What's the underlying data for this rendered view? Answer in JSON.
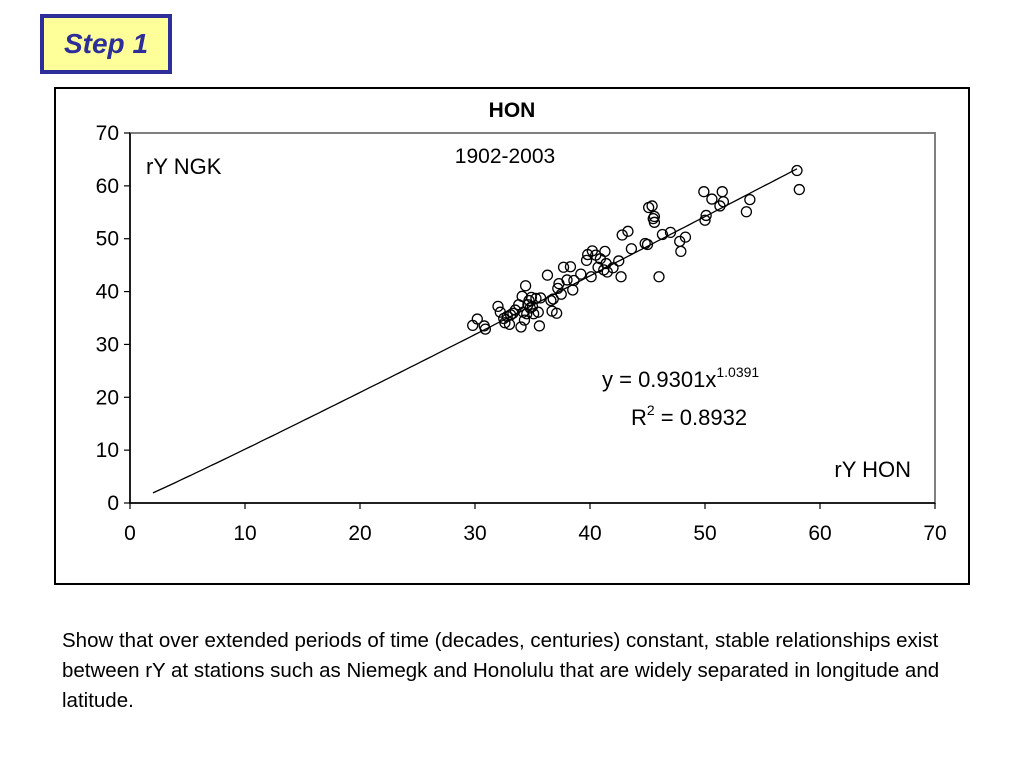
{
  "header": {
    "step_label": "Step 1"
  },
  "chart_data": {
    "type": "scatter",
    "title": "HON",
    "subtitle": "1902-2003",
    "xlabel": "rY HON",
    "ylabel": "rY NGK",
    "xlim": [
      0,
      70
    ],
    "ylim": [
      0,
      70
    ],
    "xticks": [
      "0",
      "10",
      "20",
      "30",
      "40",
      "50",
      "60",
      "70"
    ],
    "yticks": [
      "0",
      "10",
      "20",
      "30",
      "40",
      "50",
      "60",
      "70"
    ],
    "grid": false,
    "legend": "none",
    "equation": {
      "prefix": "y = 0.9301x",
      "exponent": "1.0391"
    },
    "r2": {
      "base": "R",
      "exp": "2",
      "rest": " = 0.8932"
    },
    "fit": {
      "coef": 0.9301,
      "power": 1.0391,
      "x_range": [
        2,
        58
      ]
    },
    "series": [
      {
        "points": [
          [
            29.8,
            33.6
          ],
          [
            30.2,
            34.8
          ],
          [
            30.8,
            33.5
          ],
          [
            30.9,
            32.9
          ],
          [
            32.0,
            37.2
          ],
          [
            32.2,
            36.1
          ],
          [
            32.5,
            34.9
          ],
          [
            32.6,
            34.1
          ],
          [
            32.8,
            35.3
          ],
          [
            33.0,
            33.8
          ],
          [
            33.1,
            35.6
          ],
          [
            33.3,
            35.9
          ],
          [
            33.5,
            36.5
          ],
          [
            33.8,
            37.5
          ],
          [
            34.0,
            33.3
          ],
          [
            34.1,
            39.1
          ],
          [
            34.2,
            36.1
          ],
          [
            34.3,
            34.6
          ],
          [
            34.4,
            41.1
          ],
          [
            34.5,
            35.8
          ],
          [
            34.6,
            37.5
          ],
          [
            34.7,
            38.3
          ],
          [
            34.8,
            36.9
          ],
          [
            34.9,
            38.9
          ],
          [
            35.0,
            37.2
          ],
          [
            35.1,
            35.8
          ],
          [
            35.3,
            38.7
          ],
          [
            35.5,
            36.1
          ],
          [
            35.6,
            33.5
          ],
          [
            35.7,
            38.8
          ],
          [
            36.3,
            43.1
          ],
          [
            36.6,
            38.3
          ],
          [
            36.7,
            36.3
          ],
          [
            36.8,
            38.6
          ],
          [
            37.1,
            35.9
          ],
          [
            37.2,
            40.6
          ],
          [
            37.3,
            41.5
          ],
          [
            37.5,
            39.5
          ],
          [
            37.7,
            44.6
          ],
          [
            38.0,
            42.2
          ],
          [
            38.3,
            44.7
          ],
          [
            38.5,
            40.3
          ],
          [
            38.6,
            42.1
          ],
          [
            39.2,
            43.3
          ],
          [
            39.7,
            45.9
          ],
          [
            39.8,
            47.0
          ],
          [
            40.1,
            42.8
          ],
          [
            40.2,
            47.7
          ],
          [
            40.5,
            46.9
          ],
          [
            40.7,
            44.6
          ],
          [
            40.9,
            46.2
          ],
          [
            41.2,
            44.1
          ],
          [
            41.3,
            47.6
          ],
          [
            41.4,
            45.3
          ],
          [
            41.5,
            43.7
          ],
          [
            42.0,
            44.5
          ],
          [
            42.5,
            45.8
          ],
          [
            42.7,
            42.8
          ],
          [
            42.8,
            50.7
          ],
          [
            43.3,
            51.4
          ],
          [
            43.6,
            48.1
          ],
          [
            44.8,
            49.1
          ],
          [
            45.0,
            48.9
          ],
          [
            45.1,
            55.9
          ],
          [
            45.4,
            56.2
          ],
          [
            45.5,
            53.8
          ],
          [
            45.6,
            54.2
          ],
          [
            45.6,
            53.1
          ],
          [
            46.0,
            42.8
          ],
          [
            46.3,
            50.8
          ],
          [
            47.0,
            51.2
          ],
          [
            47.8,
            49.5
          ],
          [
            47.9,
            47.6
          ],
          [
            48.3,
            50.3
          ],
          [
            49.9,
            58.9
          ],
          [
            50.0,
            53.5
          ],
          [
            50.1,
            54.4
          ],
          [
            50.6,
            57.5
          ],
          [
            51.3,
            56.2
          ],
          [
            51.5,
            58.9
          ],
          [
            51.6,
            57.0
          ],
          [
            53.6,
            55.1
          ],
          [
            53.9,
            57.4
          ],
          [
            58.0,
            62.9
          ],
          [
            58.2,
            59.3
          ]
        ]
      }
    ]
  },
  "caption": "Show that over extended periods of time (decades, centuries) constant, stable relationships exist between rY at stations such as Niemegk and Honolulu that are widely separated in longitude and latitude."
}
